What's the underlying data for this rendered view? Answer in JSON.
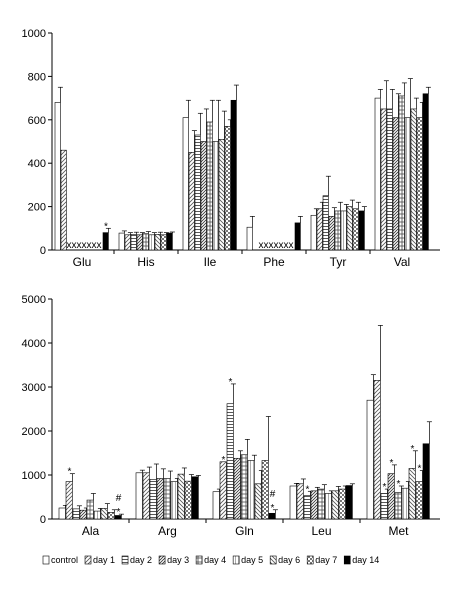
{
  "series_styles": [
    {
      "key": "control",
      "pattern": "none",
      "fill": "#ffffff"
    },
    {
      "key": "day1",
      "pattern": "diag",
      "fill": "#ffffff"
    },
    {
      "key": "day2",
      "pattern": "horiz",
      "fill": "#ffffff"
    },
    {
      "key": "day3",
      "pattern": "diag-dense",
      "fill": "#ffffff"
    },
    {
      "key": "day4",
      "pattern": "grid",
      "fill": "#ffffff"
    },
    {
      "key": "day5",
      "pattern": "vert",
      "fill": "#ffffff"
    },
    {
      "key": "day6",
      "pattern": "diag-rev",
      "fill": "#ffffff"
    },
    {
      "key": "day7",
      "pattern": "check",
      "fill": "#ffffff"
    },
    {
      "key": "day14",
      "pattern": "solid",
      "fill": "#000000"
    }
  ],
  "legend": [
    "control",
    "day 1",
    "day 2",
    "day 3",
    "day 4",
    "day 5",
    "day 6",
    "day 7",
    "day 14"
  ],
  "chart_data": [
    {
      "type": "bar",
      "ylim": [
        0,
        1000
      ],
      "yticks": [
        0,
        200,
        400,
        600,
        800,
        1000
      ],
      "categories": [
        "Glu",
        "His",
        "Ile",
        "Phe",
        "Tyr",
        "Val"
      ],
      "series": [
        {
          "name": "control",
          "values": [
            680,
            78,
            610,
            105,
            160,
            700
          ],
          "errors": [
            70,
            10,
            80,
            50,
            30,
            40
          ]
        },
        {
          "name": "day 1",
          "values": [
            460,
            70,
            450,
            null,
            190,
            650
          ],
          "errors": [
            0,
            10,
            100,
            null,
            30,
            130
          ]
        },
        {
          "name": "day 2",
          "values": [
            null,
            72,
            530,
            null,
            250,
            650
          ],
          "errors": [
            null,
            10,
            100,
            null,
            90,
            90
          ]
        },
        {
          "name": "day 3",
          "values": [
            null,
            70,
            500,
            null,
            155,
            610
          ],
          "errors": [
            null,
            10,
            150,
            null,
            40,
            110
          ]
        },
        {
          "name": "day 4",
          "values": [
            null,
            75,
            590,
            null,
            180,
            710
          ],
          "errors": [
            null,
            10,
            100,
            null,
            40,
            60
          ]
        },
        {
          "name": "day 5",
          "values": [
            null,
            70,
            500,
            null,
            180,
            610
          ],
          "errors": [
            null,
            10,
            190,
            null,
            30,
            180
          ]
        },
        {
          "name": "day 6",
          "values": [
            null,
            72,
            510,
            null,
            200,
            650
          ],
          "errors": [
            null,
            10,
            130,
            null,
            30,
            50
          ]
        },
        {
          "name": "day 7",
          "values": [
            null,
            70,
            570,
            null,
            190,
            610
          ],
          "errors": [
            null,
            10,
            30,
            null,
            30,
            70
          ]
        },
        {
          "name": "day 14",
          "values": [
            80,
            78,
            690,
            125,
            180,
            720
          ],
          "errors": [
            20,
            5,
            70,
            30,
            20,
            30
          ]
        }
      ],
      "placeholders": [
        {
          "category": "Glu",
          "text": "xxxxxxx"
        },
        {
          "category": "Phe",
          "text": "xxxxxxx"
        }
      ],
      "annotations": [
        {
          "category": "Glu",
          "series": "day 14",
          "text": "*"
        }
      ]
    },
    {
      "type": "bar",
      "ylim": [
        0,
        5000
      ],
      "yticks": [
        0,
        1000,
        2000,
        3000,
        4000,
        5000
      ],
      "categories": [
        "Ala",
        "Arg",
        "Gln",
        "Leu",
        "Met"
      ],
      "series": [
        {
          "name": "control",
          "values": [
            250,
            1050,
            620,
            750,
            2700
          ],
          "errors": [
            60,
            60,
            60,
            60,
            580
          ]
        },
        {
          "name": "day 1",
          "values": [
            850,
            1050,
            1300,
            800,
            3150
          ],
          "errors": [
            180,
            130,
            0,
            110,
            1250
          ]
        },
        {
          "name": "day 2",
          "values": [
            230,
            900,
            2620,
            530,
            580
          ],
          "errors": [
            70,
            350,
            450,
            100,
            100
          ]
        },
        {
          "name": "day 3",
          "values": [
            200,
            920,
            1380,
            640,
            1030
          ],
          "errors": [
            50,
            220,
            170,
            80,
            200
          ]
        },
        {
          "name": "day 4",
          "values": [
            430,
            920,
            1460,
            680,
            600
          ],
          "errors": [
            150,
            170,
            350,
            100,
            150
          ]
        },
        {
          "name": "day 5",
          "values": [
            180,
            850,
            1330,
            580,
            700
          ],
          "errors": [
            60,
            70,
            120,
            60,
            150
          ]
        },
        {
          "name": "day 6",
          "values": [
            240,
            1020,
            800,
            640,
            1150
          ],
          "errors": [
            110,
            140,
            300,
            100,
            400
          ]
        },
        {
          "name": "day 7",
          "values": [
            150,
            860,
            1330,
            680,
            850
          ],
          "errors": [
            60,
            150,
            1000,
            70,
            250
          ]
        },
        {
          "name": "day 14",
          "values": [
            80,
            960,
            130,
            760,
            1710
          ],
          "errors": [
            30,
            30,
            80,
            40,
            500
          ]
        }
      ],
      "annotations": [
        {
          "category": "Ala",
          "series": "day 1",
          "text": "*"
        },
        {
          "category": "Ala",
          "series": "day 14",
          "text": "#"
        },
        {
          "category": "Ala",
          "series": "day 14",
          "text": "*"
        },
        {
          "category": "Gln",
          "series": "day 1",
          "text": "*"
        },
        {
          "category": "Gln",
          "series": "day 2",
          "text": "*"
        },
        {
          "category": "Gln",
          "series": "day 14",
          "text": "#"
        },
        {
          "category": "Gln",
          "series": "day 14",
          "text": "*"
        },
        {
          "category": "Leu",
          "series": "day 2",
          "text": "*"
        },
        {
          "category": "Met",
          "series": "day 2",
          "text": "*"
        },
        {
          "category": "Met",
          "series": "day 3",
          "text": "*"
        },
        {
          "category": "Met",
          "series": "day 4",
          "text": "*"
        },
        {
          "category": "Met",
          "series": "day 6",
          "text": "*"
        },
        {
          "category": "Met",
          "series": "day 7",
          "text": "*"
        }
      ]
    }
  ]
}
